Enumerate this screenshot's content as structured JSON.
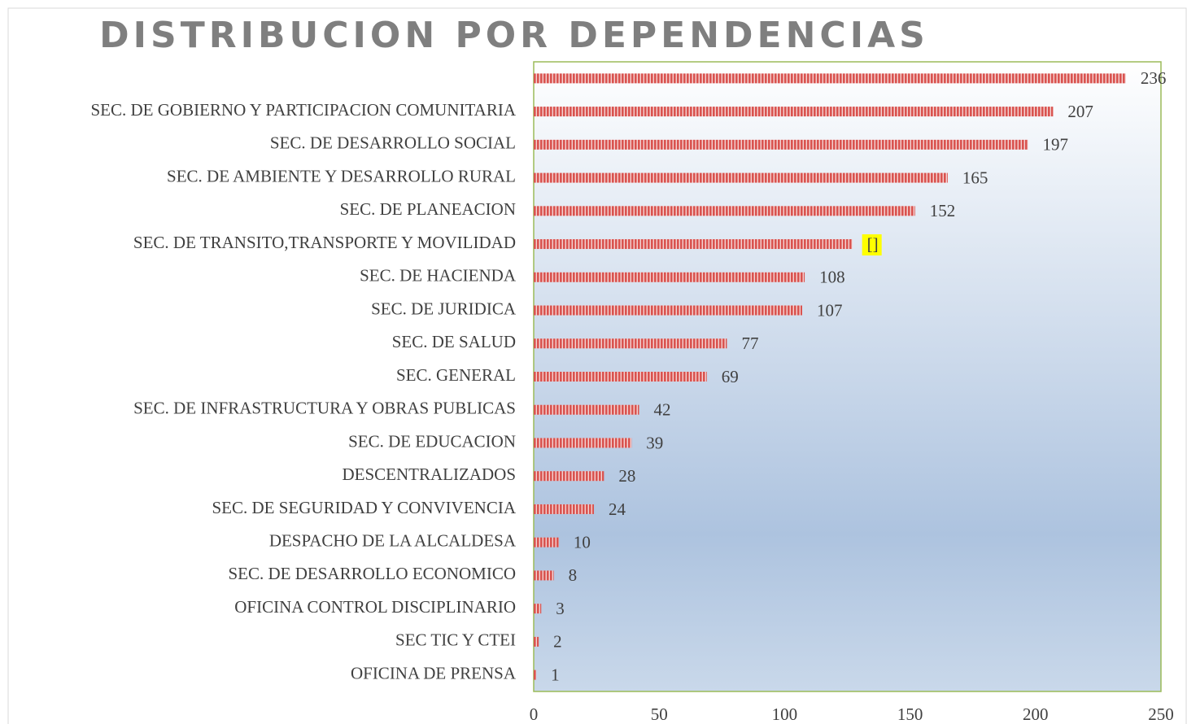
{
  "chart_data": {
    "type": "barh",
    "title": "DISTRIBUCION POR DEPENDENCIAS",
    "categories": [
      null,
      "SEC. DE GOBIERNO Y PARTICIPACION COMUNITARIA",
      "SEC. DE DESARROLLO SOCIAL",
      "SEC. DE AMBIENTE Y DESARROLLO RURAL",
      "SEC. DE PLANEACION",
      "SEC. DE TRANSITO,TRANSPORTE Y MOVILIDAD",
      "SEC. DE HACIENDA",
      "SEC. DE JURIDICA",
      "SEC. DE SALUD",
      "SEC. GENERAL",
      "SEC. DE INFRASTRUCTURA Y OBRAS PUBLICAS",
      "SEC. DE EDUCACION",
      "DESCENTRALIZADOS",
      "SEC. DE SEGURIDAD Y CONVIVENCIA",
      "DESPACHO DE LA ALCALDESA",
      "SEC. DE DESARROLLO ECONOMICO",
      "OFICINA CONTROL DISCIPLINARIO",
      "SEC TIC Y CTEI",
      "OFICINA DE PRENSA"
    ],
    "values": [
      236,
      207,
      197,
      165,
      152,
      127,
      108,
      107,
      77,
      69,
      42,
      39,
      28,
      24,
      10,
      8,
      3,
      2,
      1
    ],
    "value_labels": [
      null,
      null,
      null,
      null,
      null,
      "[]",
      null,
      null,
      null,
      null,
      null,
      null,
      null,
      null,
      null,
      null,
      null,
      null,
      null
    ],
    "color": "#d9534f",
    "xlim": [
      0,
      250
    ],
    "xticks": [
      0,
      50,
      100,
      150,
      200,
      250
    ],
    "grid": false
  }
}
